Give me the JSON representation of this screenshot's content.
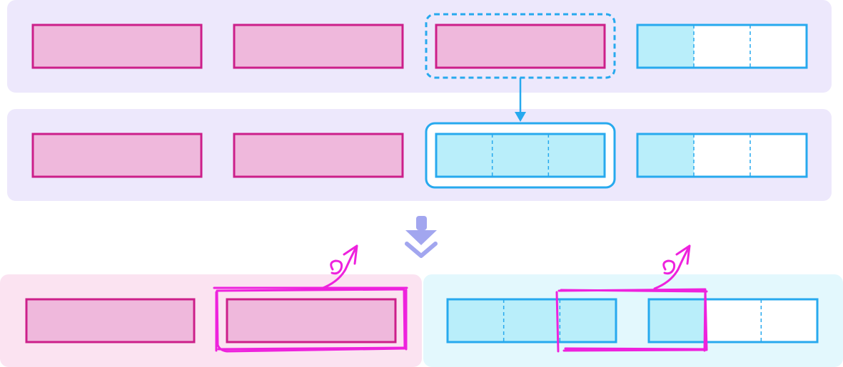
{
  "colors": {
    "panel_lavender": "#ede8fc",
    "panel_pink": "#fbe3f1",
    "panel_cyan": "#e3f8fd",
    "pink_fill": "#efb8dc",
    "pink_stroke": "#cc1f8a",
    "cyan_fill": "#b9eefa",
    "cyan_stroke": "#27a9ee",
    "white_fill": "#ffffff",
    "arrow_blue": "#27a9ee",
    "down_arrow": "#a2a6ef",
    "highlight_magenta": "#ee22dd"
  },
  "diagram": {
    "row1_blocks": [
      "pink",
      "pink",
      "pink",
      "cyan-1-of-3"
    ],
    "row2_blocks": [
      "pink",
      "pink",
      "cyan-3-of-3",
      "cyan-1-of-3"
    ],
    "row3_left_blocks": [
      "pink",
      "pink"
    ],
    "row3_right_blocks": [
      "cyan-3-of-3",
      "cyan-1-of-3"
    ],
    "icons": [
      "dashed-selection-icon",
      "arrow-down-icon",
      "double-chevron-down-icon",
      "rotate-arrow-icon"
    ]
  }
}
